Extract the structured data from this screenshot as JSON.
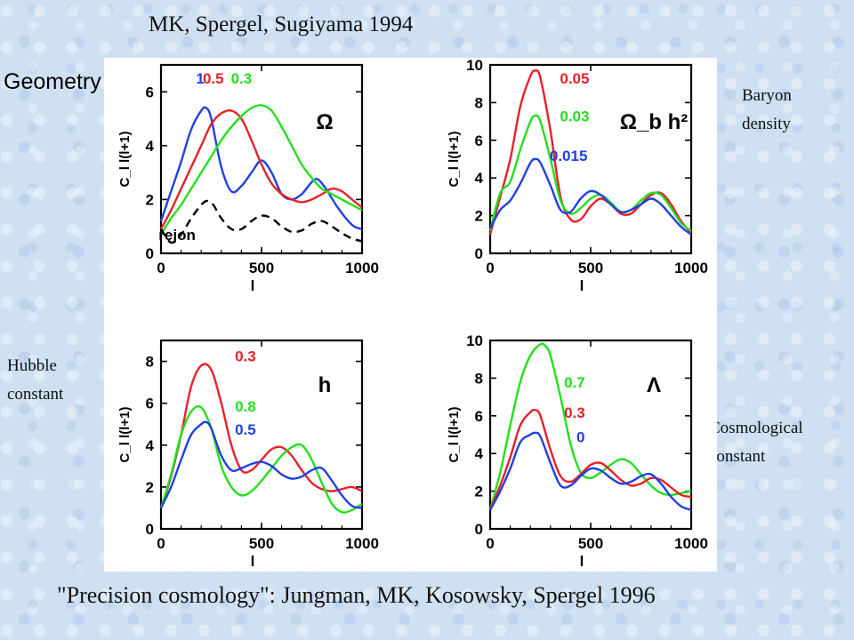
{
  "header": {
    "title": "MK, Spergel, Sugiyama 1994",
    "geometry_label": "Geometry"
  },
  "side_labels": {
    "baryon": "Baryon density",
    "hubble": "Hubble constant",
    "cosmological": "Cosmological constant"
  },
  "footer": {
    "citation": "\"Precision cosmology\":  Jungman,  MK, Kosowsky,  Spergel 1996"
  },
  "colors": {
    "red": "#e8202a",
    "green": "#22e01e",
    "blue": "#2040e0",
    "black": "#000000"
  },
  "chart_data": [
    {
      "type": "line",
      "panel": "top-left",
      "xlabel": "l",
      "ylabel": "C_l l(l+1)",
      "xlim": [
        0,
        1000
      ],
      "ylim": [
        0,
        7
      ],
      "xticks": [
        0,
        500,
        1000
      ],
      "yticks": [
        0,
        2,
        4,
        6
      ],
      "parameter_label": "Ω",
      "series": [
        {
          "name": "1",
          "color": "blue",
          "dash": false,
          "x": [
            0,
            50,
            100,
            150,
            200,
            225,
            250,
            300,
            350,
            400,
            450,
            500,
            550,
            600,
            650,
            700,
            750,
            780,
            820,
            870,
            920,
            960,
            1000
          ],
          "y": [
            1.2,
            2.3,
            3.4,
            4.6,
            5.3,
            5.4,
            5.0,
            3.2,
            2.3,
            2.5,
            3.0,
            3.45,
            3.0,
            2.2,
            2.0,
            2.2,
            2.65,
            2.75,
            2.4,
            1.8,
            1.3,
            1.0,
            0.9
          ]
        },
        {
          "name": "0.5",
          "color": "red",
          "dash": false,
          "x": [
            0,
            50,
            100,
            150,
            200,
            250,
            300,
            350,
            400,
            450,
            500,
            550,
            600,
            650,
            700,
            750,
            800,
            850,
            900,
            950,
            1000
          ],
          "y": [
            0.9,
            1.6,
            2.4,
            3.2,
            4.0,
            4.8,
            5.2,
            5.3,
            5.0,
            4.2,
            3.3,
            2.6,
            2.2,
            2.0,
            1.9,
            2.0,
            2.2,
            2.4,
            2.3,
            2.0,
            1.7
          ]
        },
        {
          "name": "0.3",
          "color": "green",
          "dash": false,
          "x": [
            0,
            50,
            100,
            150,
            200,
            250,
            300,
            350,
            400,
            450,
            500,
            550,
            600,
            650,
            700,
            750,
            800,
            850,
            900,
            950,
            1000
          ],
          "y": [
            0.7,
            1.3,
            1.8,
            2.4,
            3.0,
            3.6,
            4.2,
            4.7,
            5.1,
            5.4,
            5.5,
            5.3,
            4.7,
            4.0,
            3.3,
            2.8,
            2.4,
            2.2,
            2.0,
            1.8,
            1.6
          ]
        },
        {
          "name": "rejon",
          "color": "black",
          "dash": true,
          "x": [
            0,
            50,
            100,
            150,
            200,
            230,
            260,
            300,
            350,
            400,
            450,
            500,
            550,
            600,
            650,
            700,
            750,
            800,
            850,
            900,
            950,
            1000
          ],
          "y": [
            0.9,
            0.4,
            0.7,
            1.3,
            1.8,
            1.95,
            1.8,
            1.3,
            0.9,
            0.9,
            1.2,
            1.4,
            1.3,
            1.0,
            0.8,
            0.85,
            1.1,
            1.2,
            1.0,
            0.75,
            0.55,
            0.45
          ]
        }
      ],
      "annotations": [
        {
          "text": "1",
          "color": "blue",
          "x": 195,
          "y": 6.3
        },
        {
          "text": "0.5",
          "color": "red",
          "x": 260,
          "y": 6.3
        },
        {
          "text": "0.3",
          "color": "green",
          "x": 400,
          "y": 6.3
        },
        {
          "text": "rejon",
          "color": "black",
          "x": 80,
          "y": 0.5
        }
      ]
    },
    {
      "type": "line",
      "panel": "top-right",
      "xlabel": "l",
      "ylabel": "C_l l(l+1)",
      "xlim": [
        0,
        1000
      ],
      "ylim": [
        0,
        10
      ],
      "xticks": [
        0,
        500,
        1000
      ],
      "yticks": [
        0,
        2,
        4,
        6,
        8,
        10
      ],
      "parameter_label": "Ω_b h²",
      "series": [
        {
          "name": "0.05",
          "color": "red",
          "dash": false,
          "x": [
            0,
            50,
            100,
            150,
            200,
            225,
            250,
            300,
            350,
            400,
            450,
            500,
            550,
            600,
            650,
            700,
            750,
            800,
            850,
            900,
            950,
            1000
          ],
          "y": [
            1.0,
            3.0,
            5.0,
            7.8,
            9.4,
            9.7,
            9.3,
            6.5,
            3.0,
            1.8,
            1.8,
            2.5,
            2.9,
            2.6,
            2.1,
            2.1,
            2.6,
            3.1,
            3.2,
            2.6,
            1.7,
            1.1
          ]
        },
        {
          "name": "0.03",
          "color": "green",
          "dash": false,
          "x": [
            0,
            50,
            100,
            150,
            200,
            225,
            250,
            300,
            350,
            400,
            450,
            500,
            550,
            600,
            650,
            700,
            750,
            800,
            850,
            900,
            950,
            1000
          ],
          "y": [
            1.2,
            3.2,
            3.8,
            5.5,
            7.0,
            7.3,
            7.0,
            5.0,
            2.8,
            2.1,
            2.4,
            2.9,
            3.1,
            2.7,
            2.2,
            2.3,
            2.8,
            3.2,
            3.1,
            2.4,
            1.6,
            1.2
          ]
        },
        {
          "name": "0.015",
          "color": "blue",
          "dash": false,
          "x": [
            0,
            50,
            100,
            150,
            200,
            225,
            250,
            300,
            350,
            400,
            450,
            500,
            550,
            600,
            650,
            700,
            750,
            800,
            850,
            900,
            950,
            1000
          ],
          "y": [
            1.3,
            2.3,
            2.8,
            3.7,
            4.8,
            5.0,
            4.8,
            3.6,
            2.3,
            2.2,
            2.9,
            3.3,
            3.1,
            2.6,
            2.2,
            2.3,
            2.6,
            2.9,
            2.6,
            2.0,
            1.4,
            1.0
          ]
        }
      ],
      "annotations": [
        {
          "text": "0.05",
          "color": "red",
          "x": 420,
          "y": 9.0
        },
        {
          "text": "0.03",
          "color": "green",
          "x": 420,
          "y": 7.0
        },
        {
          "text": "0.015",
          "color": "blue",
          "x": 390,
          "y": 4.9
        }
      ]
    },
    {
      "type": "line",
      "panel": "bottom-left",
      "xlabel": "l",
      "ylabel": "C_l l(l+1)",
      "xlim": [
        0,
        1000
      ],
      "ylim": [
        0,
        9
      ],
      "xticks": [
        0,
        500,
        1000
      ],
      "yticks": [
        0,
        2,
        4,
        6,
        8
      ],
      "parameter_label": "h",
      "series": [
        {
          "name": "0.3",
          "color": "red",
          "dash": false,
          "x": [
            0,
            50,
            100,
            150,
            200,
            250,
            300,
            350,
            400,
            450,
            500,
            550,
            600,
            650,
            700,
            750,
            800,
            850,
            900,
            950,
            1000
          ],
          "y": [
            1.0,
            2.5,
            4.5,
            6.8,
            7.8,
            7.6,
            6.0,
            4.0,
            2.8,
            2.8,
            3.3,
            3.8,
            3.9,
            3.5,
            2.8,
            2.2,
            1.9,
            1.8,
            1.9,
            2.0,
            1.8
          ]
        },
        {
          "name": "0.8",
          "color": "green",
          "dash": false,
          "x": [
            0,
            50,
            100,
            150,
            200,
            250,
            300,
            350,
            400,
            450,
            500,
            550,
            600,
            650,
            700,
            750,
            800,
            850,
            900,
            950,
            1000
          ],
          "y": [
            1.0,
            2.6,
            4.5,
            5.6,
            5.8,
            4.8,
            3.0,
            2.0,
            1.6,
            1.8,
            2.3,
            2.9,
            3.5,
            3.9,
            4.0,
            3.3,
            2.2,
            1.2,
            0.8,
            0.9,
            1.2
          ]
        },
        {
          "name": "0.5",
          "color": "blue",
          "dash": false,
          "x": [
            0,
            50,
            100,
            150,
            200,
            225,
            250,
            300,
            350,
            400,
            450,
            500,
            550,
            600,
            650,
            700,
            750,
            800,
            850,
            900,
            950,
            1000
          ],
          "y": [
            1.0,
            2.0,
            3.3,
            4.5,
            5.0,
            5.1,
            4.8,
            3.5,
            2.8,
            2.9,
            3.1,
            3.2,
            3.0,
            2.6,
            2.4,
            2.5,
            2.8,
            2.9,
            2.3,
            1.6,
            1.1,
            1.0
          ]
        }
      ],
      "annotations": [
        {
          "text": "0.3",
          "color": "red",
          "x": 420,
          "y": 8.0
        },
        {
          "text": "0.8",
          "color": "green",
          "x": 420,
          "y": 5.6
        },
        {
          "text": "0.5",
          "color": "blue",
          "x": 420,
          "y": 4.5
        }
      ]
    },
    {
      "type": "line",
      "panel": "bottom-right",
      "xlabel": "l",
      "ylabel": "C_l l(l+1)",
      "xlim": [
        0,
        1000
      ],
      "ylim": [
        0,
        10
      ],
      "xticks": [
        0,
        500,
        1000
      ],
      "yticks": [
        0,
        2,
        4,
        6,
        8,
        10
      ],
      "parameter_label": "Λ",
      "series": [
        {
          "name": "0.7",
          "color": "green",
          "dash": false,
          "x": [
            0,
            50,
            100,
            150,
            200,
            250,
            275,
            300,
            350,
            400,
            450,
            500,
            550,
            600,
            650,
            700,
            750,
            800,
            850,
            900,
            950,
            1000
          ],
          "y": [
            1.0,
            3.0,
            5.5,
            7.8,
            9.2,
            9.8,
            9.7,
            9.2,
            7.0,
            4.5,
            3.0,
            2.7,
            3.0,
            3.4,
            3.7,
            3.5,
            2.9,
            2.3,
            1.9,
            1.8,
            1.9,
            2.0
          ]
        },
        {
          "name": "0.3",
          "color": "red",
          "dash": false,
          "x": [
            0,
            50,
            100,
            150,
            200,
            225,
            250,
            300,
            350,
            400,
            450,
            500,
            550,
            600,
            650,
            700,
            750,
            800,
            850,
            900,
            950,
            1000
          ],
          "y": [
            1.0,
            2.3,
            3.8,
            5.5,
            6.2,
            6.3,
            6.0,
            4.2,
            2.8,
            2.5,
            2.9,
            3.4,
            3.5,
            3.1,
            2.6,
            2.3,
            2.4,
            2.7,
            2.6,
            2.2,
            1.8,
            1.7
          ]
        },
        {
          "name": "0",
          "color": "blue",
          "dash": false,
          "x": [
            0,
            50,
            100,
            150,
            200,
            225,
            250,
            300,
            350,
            400,
            450,
            500,
            550,
            600,
            650,
            700,
            750,
            800,
            850,
            900,
            950,
            1000
          ],
          "y": [
            1.0,
            2.0,
            3.2,
            4.6,
            5.0,
            5.1,
            4.9,
            3.5,
            2.3,
            2.3,
            2.8,
            3.2,
            3.1,
            2.7,
            2.4,
            2.5,
            2.8,
            2.9,
            2.4,
            1.7,
            1.2,
            1.0
          ]
        }
      ],
      "annotations": [
        {
          "text": "0.7",
          "color": "green",
          "x": 420,
          "y": 7.5
        },
        {
          "text": "0.3",
          "color": "red",
          "x": 420,
          "y": 5.9
        },
        {
          "text": "0",
          "color": "blue",
          "x": 450,
          "y": 4.6
        }
      ]
    }
  ]
}
